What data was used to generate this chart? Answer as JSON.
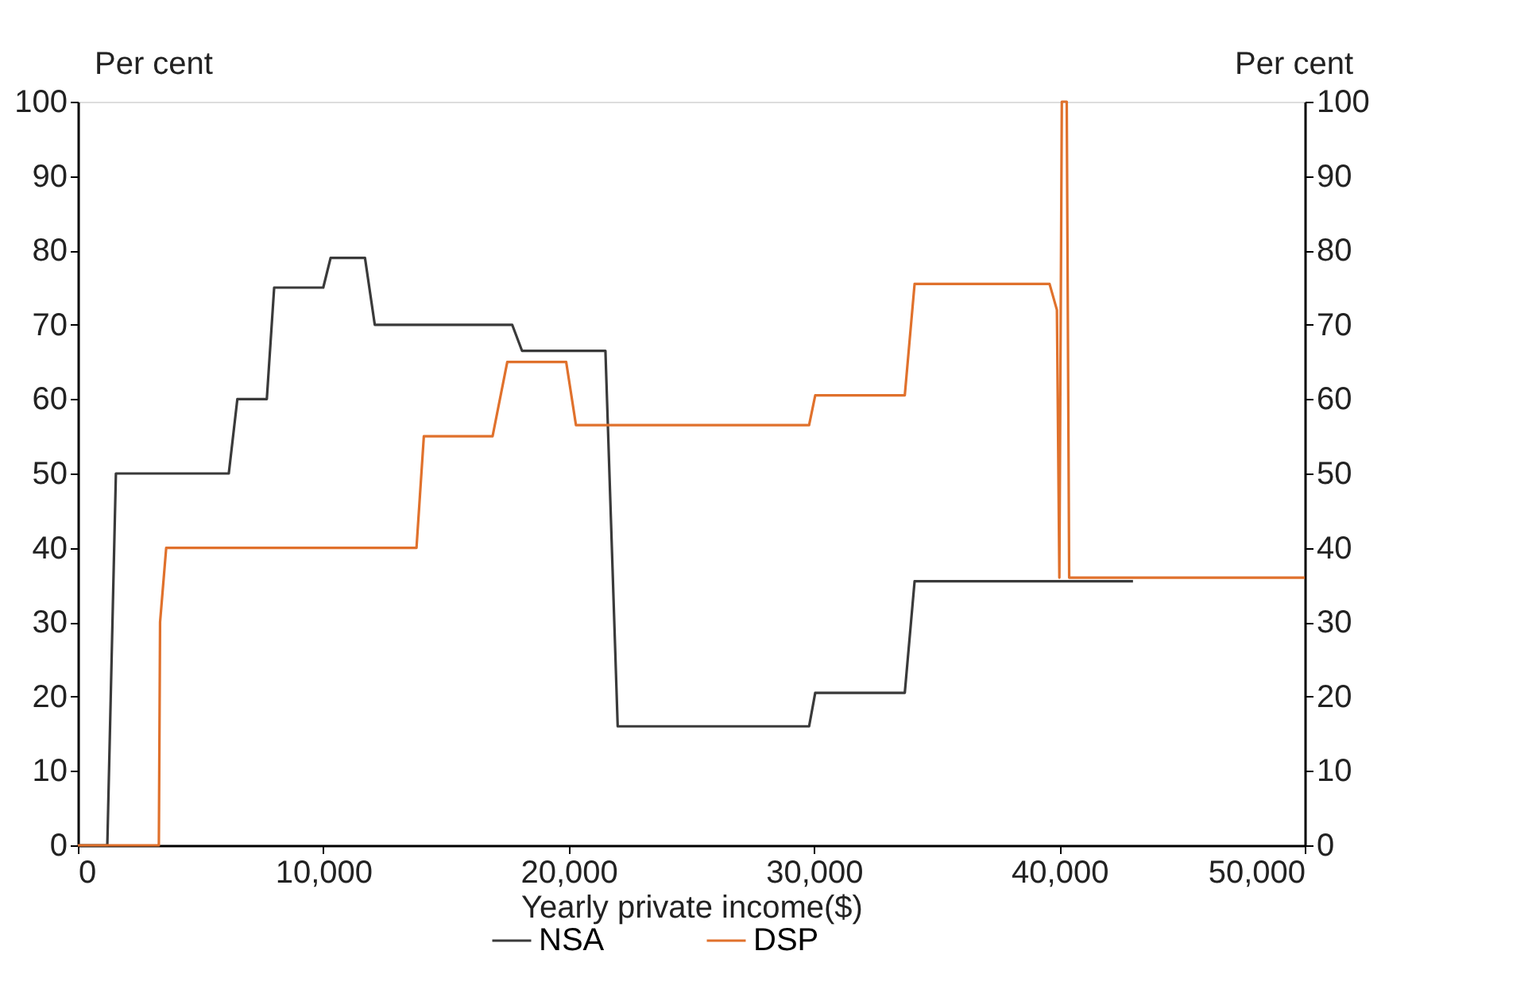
{
  "chart_data": {
    "type": "line",
    "xlabel": "Yearly private income($)",
    "ylabel": "Per cent",
    "y2label": "Per cent",
    "xlim": [
      0,
      50000
    ],
    "xticks": [
      0,
      {
        "value": 10000,
        "label": "10,000"
      },
      {
        "value": 20000,
        "label": "20,000"
      },
      {
        "value": 30000,
        "label": "30,000"
      },
      {
        "value": 40000,
        "label": "40,000"
      },
      {
        "value": 50000,
        "label": "50,000"
      }
    ],
    "ylim": [
      0,
      100
    ],
    "yticks": [
      0,
      10,
      20,
      30,
      40,
      50,
      60,
      70,
      80,
      90,
      100
    ],
    "y2lim": [
      0,
      100
    ],
    "y2ticks": [
      0,
      10,
      20,
      30,
      40,
      50,
      60,
      70,
      80,
      90,
      100
    ],
    "grid": false,
    "legend": "bottom",
    "series": [
      {
        "name": "NSA",
        "color": "#3a3a3a",
        "x": [
          0,
          1200,
          1550,
          6150,
          6500,
          7700,
          8000,
          10000,
          10300,
          11700,
          12100,
          17700,
          18100,
          21500,
          22000,
          29800,
          30050,
          33700,
          34100,
          43000
        ],
        "values": [
          0,
          0,
          50,
          50,
          60,
          60,
          75,
          75,
          79,
          79,
          70,
          70,
          66.5,
          66.5,
          16,
          16,
          20.5,
          20.5,
          35.5,
          35.5
        ]
      },
      {
        "name": "DSP",
        "color": "#e0712c",
        "x": [
          0,
          3300,
          3350,
          3600,
          13800,
          14100,
          16900,
          17500,
          19900,
          20300,
          29800,
          30050,
          33700,
          34100,
          39600,
          39900,
          40000,
          40100,
          40300,
          40400,
          50000
        ],
        "values": [
          0,
          0,
          30,
          40,
          40,
          55,
          55,
          65,
          65,
          56.5,
          56.5,
          60.5,
          60.5,
          75.5,
          75.5,
          72,
          36,
          100,
          100,
          36,
          36
        ]
      }
    ]
  }
}
